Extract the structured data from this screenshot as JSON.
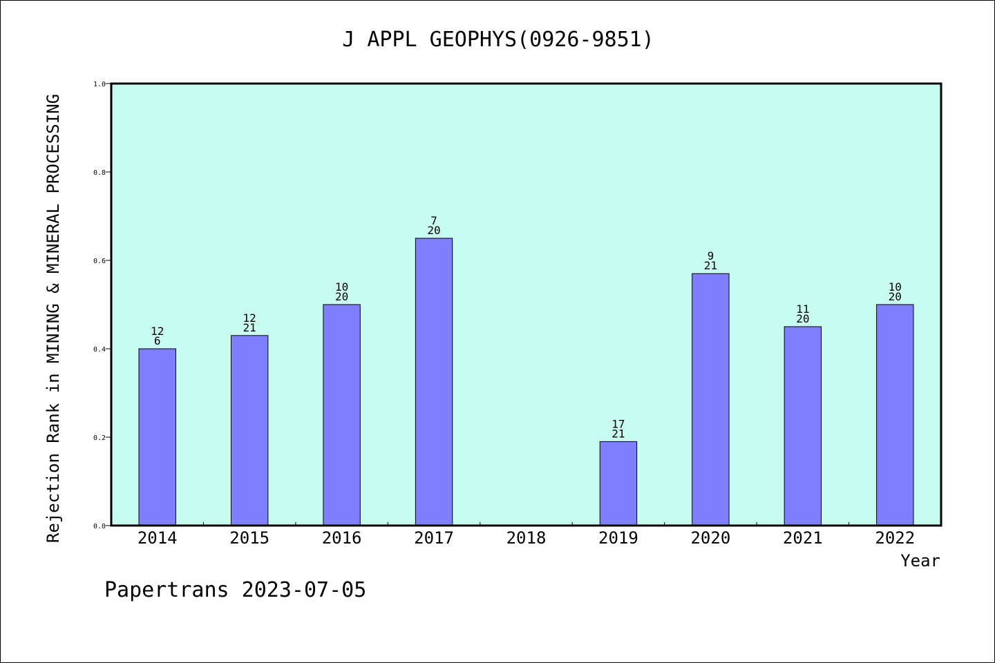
{
  "chart_data": {
    "type": "bar",
    "title": "J APPL GEOPHYS(0926-9851)",
    "xlabel": "Year",
    "ylabel": "Rejection Rank in MINING & MINERAL PROCESSING",
    "ylim": [
      0,
      1.0
    ],
    "yticks": [
      "0.0",
      "0.2",
      "0.4",
      "0.6",
      "0.8",
      "1.0"
    ],
    "grid": false,
    "categories": [
      "2014",
      "2015",
      "2016",
      "2017",
      "2018",
      "2019",
      "2020",
      "2021",
      "2022"
    ],
    "values": [
      0.4,
      0.43,
      0.5,
      0.65,
      null,
      0.19,
      0.57,
      0.45,
      0.5
    ],
    "labels_top": [
      "12",
      "12",
      "10",
      "7",
      "",
      "17",
      "9",
      "11",
      "10"
    ],
    "labels_bottom": [
      "6",
      "21",
      "20",
      "20",
      "",
      "21",
      "21",
      "20",
      "20"
    ],
    "colors": {
      "plot_background": "#c8fcf0",
      "bar_fill": "#8080ff",
      "bar_stroke": "#000000"
    }
  },
  "footer": "Papertrans 2023-07-05"
}
